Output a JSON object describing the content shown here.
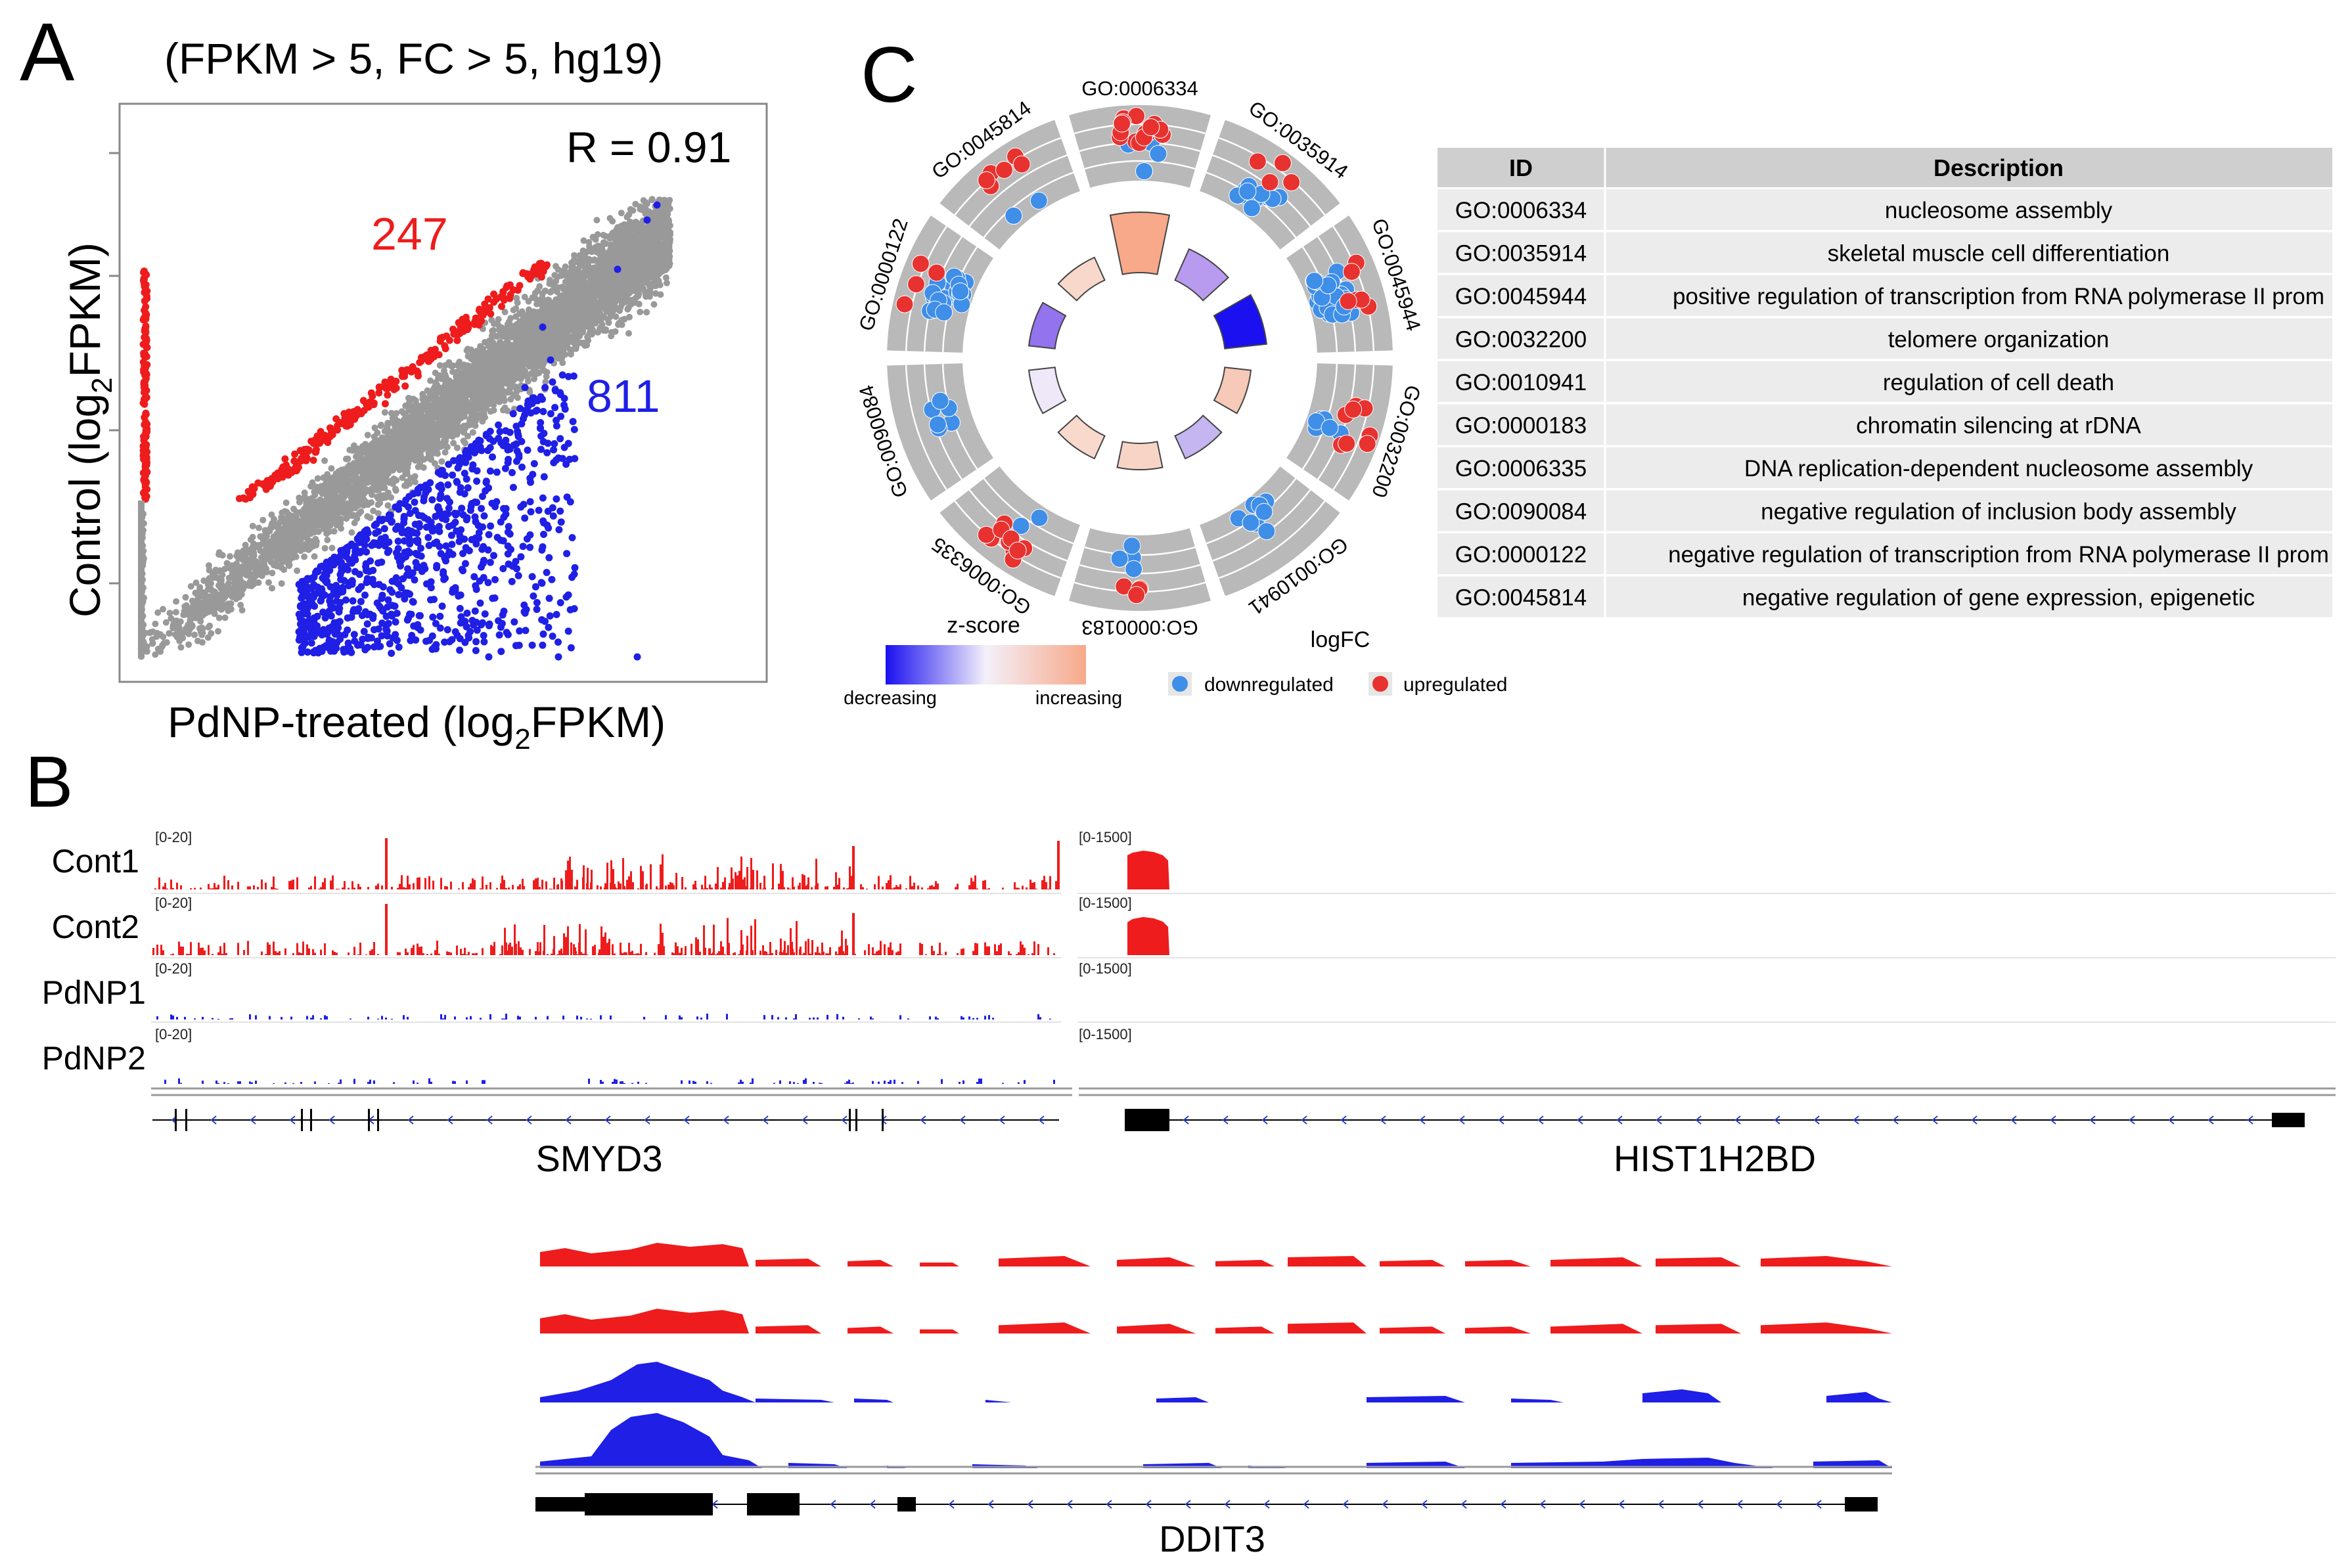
{
  "panel_letters": {
    "a": "A",
    "b": "B",
    "c": "C"
  },
  "colors": {
    "up": "#ee1c1c",
    "down": "#1f1fe6",
    "grey": "#999999",
    "gene_blue": "#2a3fd6",
    "ring": "#b9b9b9",
    "table_header": "#cfcfcf",
    "table_row": "#ececec",
    "z_low": "#1a10f0",
    "z_mid": "#f4f0fa",
    "z_high": "#f7a98a",
    "pt_down": "#3f8ee8",
    "pt_up": "#e8322f"
  },
  "chart_data": [
    {
      "type": "scatter",
      "panel": "A",
      "title": "(FPKM > 5, FC > 5, hg19)",
      "xlabel": {
        "main": "PdNP-treated (log",
        "sub": "2",
        "tail": "FPKM)"
      },
      "ylabel": {
        "main": "Control (log",
        "sub": "2",
        "tail": "FPKM)"
      },
      "correlation_label": "R = 0.91",
      "count_up": "247",
      "count_down": "811",
      "series": [
        {
          "color": "red"
        },
        {
          "color": "blue"
        },
        {
          "color": "grey"
        }
      ]
    },
    {
      "type": "bar",
      "panel": "B",
      "samples": [
        "Cont1",
        "Cont2",
        "PdNP1",
        "PdNP2"
      ],
      "gene_labels": {
        "smyd3": "SMYD3",
        "hist": "HIST1H2BD",
        "ddit3": "DDIT3"
      },
      "scales": {
        "left": "[0-20]",
        "right": "[0-1500]"
      }
    },
    {
      "type": "pie",
      "panel": "C",
      "terms": [
        "GO:0006334",
        "GO:0035914",
        "GO:0045944",
        "GO:0032200",
        "GO:0010941",
        "GO:0000183",
        "GO:0006335",
        "GO:0090084",
        "GO:0000122",
        "GO:0045814"
      ],
      "zscore_legend": {
        "title": "z-score",
        "low": "decreasing",
        "high": "increasing"
      },
      "logfc_legend": {
        "title": "logFC",
        "down": "downregulated",
        "up": "upregulated"
      },
      "table": {
        "headers": [
          "ID",
          "Description"
        ],
        "rows": [
          {
            "id": "GO:0006334",
            "desc": "nucleosome assembly"
          },
          {
            "id": "GO:0035914",
            "desc": "skeletal muscle cell differentiation"
          },
          {
            "id": "GO:0045944",
            "desc": "positive regulation of transcription from RNA polymerase II prom"
          },
          {
            "id": "GO:0032200",
            "desc": "telomere organization"
          },
          {
            "id": "GO:0010941",
            "desc": "regulation of cell death"
          },
          {
            "id": "GO:0000183",
            "desc": "chromatin silencing at rDNA"
          },
          {
            "id": "GO:0006335",
            "desc": "DNA replication-dependent nucleosome assembly"
          },
          {
            "id": "GO:0090084",
            "desc": "negative regulation of inclusion body assembly"
          },
          {
            "id": "GO:0000122",
            "desc": "negative regulation of transcription from RNA polymerase II prom"
          },
          {
            "id": "GO:0045814",
            "desc": "negative regulation of gene expression, epigenetic"
          }
        ]
      }
    }
  ]
}
